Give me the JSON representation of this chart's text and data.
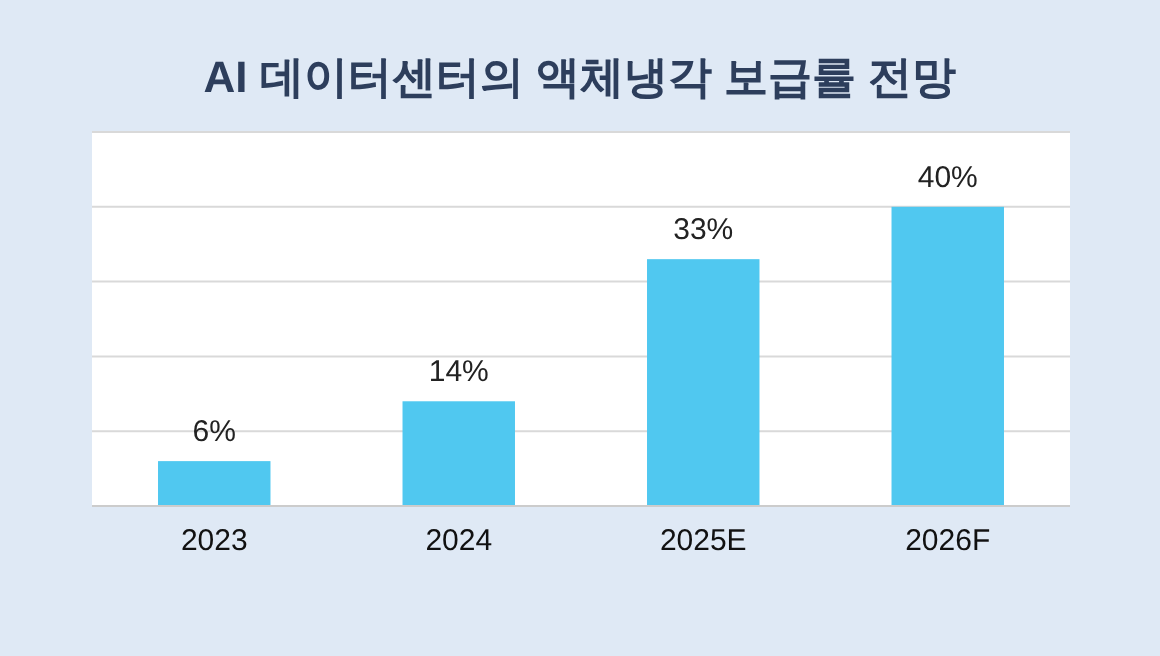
{
  "chart_data": {
    "type": "bar",
    "title": "AI 데이터센터의 액체냉각 보급률 전망",
    "categories": [
      "2023",
      "2024",
      "2025E",
      "2026F"
    ],
    "values": [
      6,
      14,
      33,
      40
    ],
    "color": "#50c8f0",
    "value_labels": [
      "6%",
      "14%",
      "33%",
      "40%"
    ],
    "ylim": [
      0,
      50
    ],
    "yticks": [
      {
        "value": 0,
        "label": null
      },
      {
        "value": 10,
        "label": null
      },
      {
        "value": 20,
        "label": null
      },
      {
        "value": 30,
        "label": null
      },
      {
        "value": 40,
        "label": null
      },
      {
        "value": 50,
        "label": null
      }
    ],
    "grid": "y",
    "tick_labels": "x"
  }
}
